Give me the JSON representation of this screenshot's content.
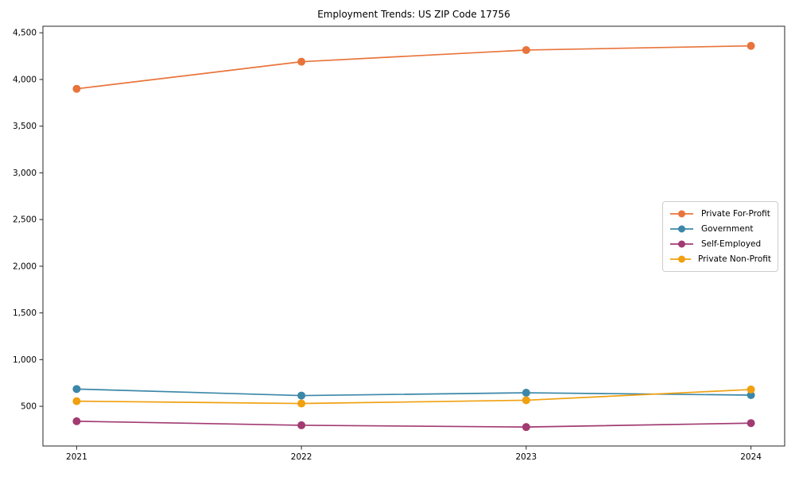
{
  "chart_data": {
    "type": "line",
    "title": "Employment Trends: US ZIP Code 17756",
    "xlabel": "",
    "ylabel": "",
    "x": [
      2021,
      2022,
      2023,
      2024
    ],
    "series": [
      {
        "name": "Private For-Profit",
        "color": "#E8743B",
        "values": [
          3900,
          4190,
          4315,
          4360
        ]
      },
      {
        "name": "Government",
        "color": "#3B87A8",
        "values": [
          685,
          615,
          645,
          620
        ]
      },
      {
        "name": "Self-Employed",
        "color": "#A23B72",
        "values": [
          340,
          297,
          278,
          320
        ]
      },
      {
        "name": "Private Non-Profit",
        "color": "#F0A010",
        "values": [
          555,
          530,
          565,
          680
        ]
      }
    ],
    "xlim": [
      2020.85,
      2024.15
    ],
    "ylim": [
      75,
      4570
    ],
    "yticks": [
      500,
      1000,
      1500,
      2000,
      2500,
      3000,
      3500,
      4000,
      4500
    ],
    "ytick_labels": [
      "500",
      "1,000",
      "1,500",
      "2,000",
      "2,500",
      "3,000",
      "3,500",
      "4,000",
      "4,500"
    ],
    "xtick_labels": [
      "2021",
      "2022",
      "2023",
      "2024"
    ],
    "grid": false,
    "legend_position": "center right",
    "frame_color": "#262626",
    "background_color": "#ffffff"
  }
}
